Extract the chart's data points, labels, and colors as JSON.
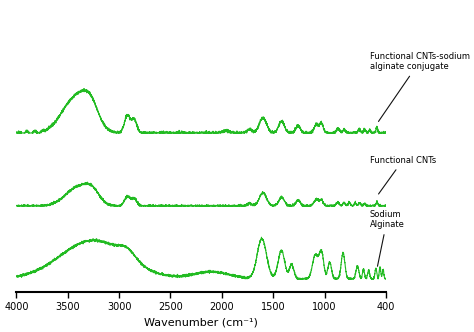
{
  "xlabel": "Wavenumber (cm⁻¹)",
  "xlim": [
    4000,
    400
  ],
  "line_color": "#22bb22",
  "background_color": "#ffffff",
  "offsets": [
    1.7,
    0.85,
    0.0
  ],
  "ylim": [
    -0.15,
    3.2
  ],
  "xticks": [
    4000,
    3500,
    3000,
    2500,
    2000,
    1500,
    1000,
    400
  ],
  "annotation_arrow_color": "#111111",
  "annotation_fontsize": 6.0
}
